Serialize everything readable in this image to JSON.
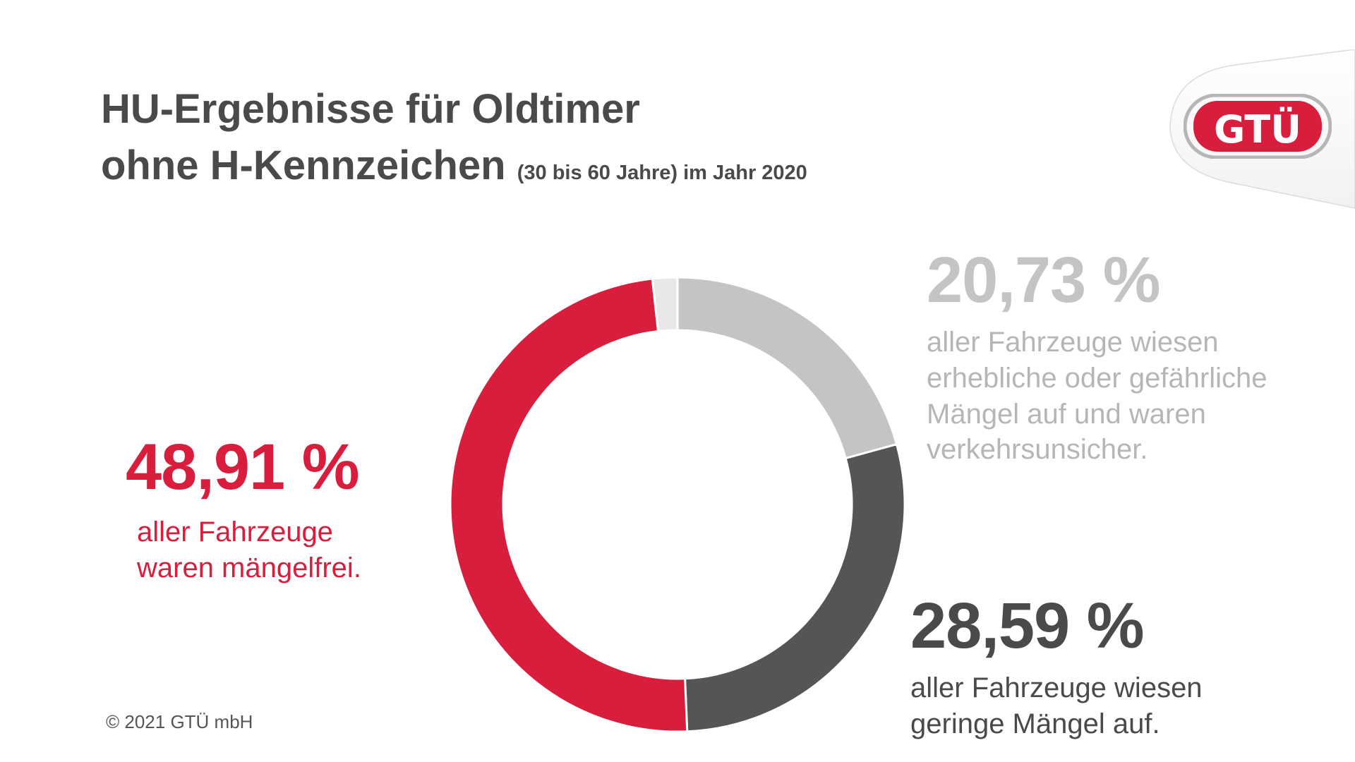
{
  "colors": {
    "red": "#d81e3c",
    "dark_gray": "#555555",
    "light_gray": "#c3c4c6",
    "lightest_gray": "#e8e8e8",
    "title": "#4a4a4a",
    "copyright": "#555555"
  },
  "header": {
    "title_line1": "HU-Ergebnisse für Oldtimer",
    "title_line2": "ohne H-Kennzeichen",
    "title_sub": "(30 bis 60 Jahre) im Jahr 2020"
  },
  "logo": {
    "text": "GTÜ",
    "icon": "gtue-logo"
  },
  "chart_data": {
    "type": "pie",
    "style": "donut",
    "start": "top, clockwise",
    "unit": "%",
    "slices": [
      {
        "label": "20,73 %",
        "value": 20.73,
        "color": "#c3c4c6"
      },
      {
        "label": "28,59 %",
        "value": 28.59,
        "color": "#555555"
      },
      {
        "label": "48,91 %",
        "value": 48.91,
        "color": "#d81e3c"
      },
      {
        "label": "",
        "value": 1.77,
        "color": "#e8e8e8"
      }
    ]
  },
  "annotations": {
    "light": {
      "value": "20,73 %",
      "text": [
        "aller Fahrzeuge wiesen",
        "erhebliche oder gefährliche",
        "Mängel auf und waren",
        "verkehrsunsicher."
      ]
    },
    "dark": {
      "value": "28,59 %",
      "text": [
        "aller Fahrzeuge wiesen",
        "geringe Mängel auf."
      ]
    },
    "red": {
      "value": "48,91 %",
      "text": [
        "aller Fahrzeuge",
        "waren mängelfrei."
      ]
    }
  },
  "footer": {
    "copyright": "© 2021 GTÜ mbH"
  }
}
